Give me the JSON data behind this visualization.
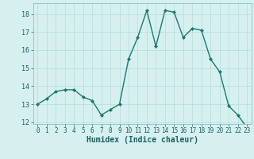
{
  "x": [
    0,
    1,
    2,
    3,
    4,
    5,
    6,
    7,
    8,
    9,
    10,
    11,
    12,
    13,
    14,
    15,
    16,
    17,
    18,
    19,
    20,
    21,
    22,
    23
  ],
  "y": [
    13.0,
    13.3,
    13.7,
    13.8,
    13.8,
    13.4,
    13.2,
    12.4,
    12.7,
    13.0,
    15.5,
    16.7,
    18.2,
    16.2,
    18.2,
    18.1,
    16.7,
    17.2,
    17.1,
    15.5,
    14.8,
    12.9,
    12.4,
    11.7
  ],
  "line_color": "#1a7a6e",
  "marker": "D",
  "marker_size": 2,
  "bg_color": "#d6f0f0",
  "grid_color": "#b8dada",
  "xlabel": "Humidex (Indice chaleur)",
  "ylim": [
    11.9,
    18.6
  ],
  "xlim": [
    -0.5,
    23.5
  ],
  "yticks": [
    12,
    13,
    14,
    15,
    16,
    17,
    18
  ],
  "xticks": [
    0,
    1,
    2,
    3,
    4,
    5,
    6,
    7,
    8,
    9,
    10,
    11,
    12,
    13,
    14,
    15,
    16,
    17,
    18,
    19,
    20,
    21,
    22,
    23
  ],
  "tick_fontsize": 6,
  "xlabel_fontsize": 7,
  "line_width": 1.0
}
